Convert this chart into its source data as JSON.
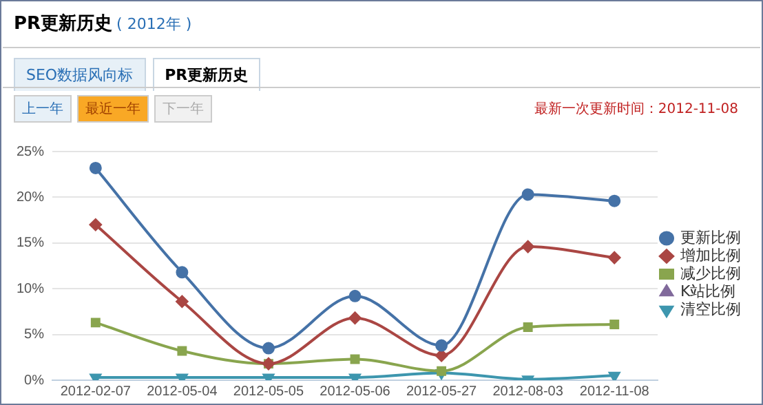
{
  "chart_data": {
    "type": "line",
    "title": "PR更新历史",
    "subtitle": "( 2012年 )",
    "annotations": [
      "SEO数据风向标",
      "PR更新历史",
      "上一年",
      "最近一年",
      "下一年",
      "最新一次更新时间：2012-11-08"
    ],
    "categories": [
      "2012-02-07",
      "2012-05-04",
      "2012-05-05",
      "2012-05-06",
      "2012-05-27",
      "2012-08-03",
      "2012-11-08"
    ],
    "series": [
      {
        "name": "更新比例",
        "color": "#4572a7",
        "marker": "circle",
        "values": [
          23.2,
          11.8,
          3.5,
          9.2,
          3.8,
          20.3,
          19.6
        ]
      },
      {
        "name": "增加比例",
        "color": "#aa4643",
        "marker": "diamond",
        "values": [
          17.0,
          8.6,
          1.8,
          6.8,
          2.7,
          14.6,
          13.4
        ]
      },
      {
        "name": "减少比例",
        "color": "#89a54e",
        "marker": "square",
        "values": [
          6.3,
          3.2,
          1.8,
          2.3,
          1.0,
          5.8,
          6.1
        ]
      },
      {
        "name": "K站比例",
        "color": "#80699b",
        "marker": "triangle",
        "values": [
          null,
          null,
          null,
          null,
          null,
          null,
          null
        ]
      },
      {
        "name": "清空比例",
        "color": "#3d96ae",
        "marker": "triangle-down",
        "values": [
          0.3,
          0.3,
          0.3,
          0.3,
          0.8,
          0.1,
          0.5
        ]
      }
    ],
    "ylim": [
      0,
      25
    ],
    "yticks": [
      {
        "value": 0,
        "label": "0%"
      },
      {
        "value": 5,
        "label": "5%"
      },
      {
        "value": 10,
        "label": "10%"
      },
      {
        "value": 15,
        "label": "15%"
      },
      {
        "value": 20,
        "label": "20%"
      },
      {
        "value": 25,
        "label": "25%"
      }
    ],
    "grid": "y",
    "legend": "right"
  }
}
